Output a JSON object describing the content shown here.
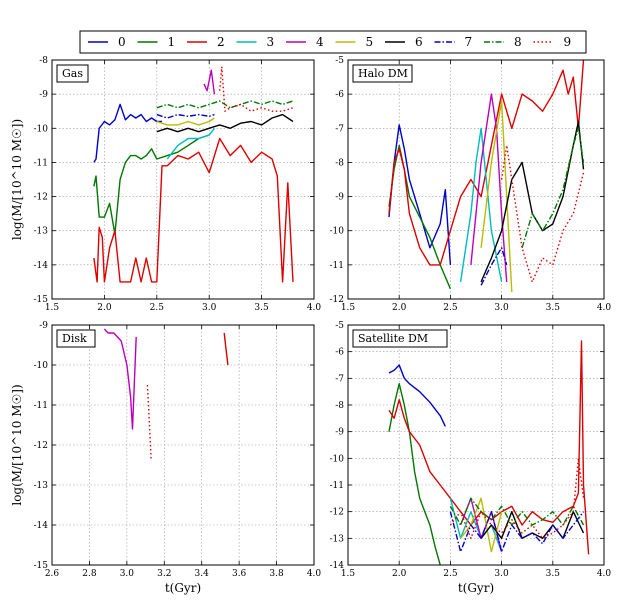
{
  "legend": {
    "entries": [
      {
        "label": "0",
        "color": "#0000cc",
        "dash": "solid"
      },
      {
        "label": "1",
        "color": "#007700",
        "dash": "solid"
      },
      {
        "label": "2",
        "color": "#dd0000",
        "dash": "solid"
      },
      {
        "label": "3",
        "color": "#00bbbb",
        "dash": "solid"
      },
      {
        "label": "4",
        "color": "#bb00bb",
        "dash": "solid"
      },
      {
        "label": "5",
        "color": "#bbbb00",
        "dash": "solid"
      },
      {
        "label": "6",
        "color": "#000000",
        "dash": "solid"
      },
      {
        "label": "7",
        "color": "#0000cc",
        "dash": "dashdot"
      },
      {
        "label": "8",
        "color": "#007700",
        "dash": "dashdot"
      },
      {
        "label": "9",
        "color": "#dd0000",
        "dash": "dotted"
      }
    ]
  },
  "chart_data": [
    {
      "type": "line",
      "title": "Gas",
      "xlabel": "",
      "ylabel": "log(M/[10^10 M☉])",
      "xlim": [
        1.5,
        4.0
      ],
      "ylim": [
        -15,
        -8
      ],
      "xticks": [
        "1.5",
        "2.0",
        "2.5",
        "3.0",
        "3.5",
        "4.0"
      ],
      "yticks": [
        "-15",
        "-14",
        "-13",
        "-12",
        "-11",
        "-10",
        "-9",
        "-8"
      ],
      "grid": true,
      "series": [
        {
          "name": "0",
          "x": [
            1.9,
            1.92,
            1.95,
            2.0,
            2.05,
            2.1,
            2.15,
            2.2,
            2.25,
            2.3,
            2.35,
            2.4,
            2.45,
            2.5,
            2.55
          ],
          "y": [
            -11.0,
            -10.9,
            -10.0,
            -9.8,
            -9.9,
            -9.75,
            -9.3,
            -9.75,
            -9.6,
            -9.7,
            -9.6,
            -9.8,
            -9.7,
            -9.8,
            -9.8
          ]
        },
        {
          "name": "1",
          "x": [
            1.9,
            1.92,
            1.95,
            2.0,
            2.05,
            2.1,
            2.15,
            2.2,
            2.25,
            2.3,
            2.35,
            2.4,
            2.45,
            2.5,
            2.6,
            2.7,
            2.8,
            2.9,
            3.0
          ],
          "y": [
            -11.7,
            -11.4,
            -12.6,
            -12.6,
            -12.2,
            -13.1,
            -11.5,
            -11.0,
            -10.8,
            -10.8,
            -10.9,
            -10.8,
            -10.6,
            -10.9,
            -10.8,
            -10.7,
            -10.5,
            -10.3,
            -10.2
          ]
        },
        {
          "name": "2",
          "x": [
            1.9,
            1.93,
            1.95,
            1.98,
            2.0,
            2.05,
            2.1,
            2.15,
            2.2,
            2.25,
            2.3,
            2.35,
            2.4,
            2.45,
            2.5,
            2.55,
            2.6,
            2.7,
            2.8,
            2.9,
            3.0,
            3.1,
            3.2,
            3.3,
            3.4,
            3.5,
            3.6,
            3.65,
            3.7,
            3.75,
            3.8
          ],
          "y": [
            -13.8,
            -14.5,
            -12.9,
            -13.2,
            -14.5,
            -13.5,
            -13.0,
            -14.5,
            -14.5,
            -14.5,
            -13.8,
            -14.5,
            -13.8,
            -14.5,
            -14.5,
            -11.1,
            -11.1,
            -10.8,
            -10.9,
            -10.7,
            -11.3,
            -10.3,
            -10.8,
            -10.5,
            -11.0,
            -10.7,
            -10.9,
            -11.4,
            -14.5,
            -11.6,
            -14.5
          ]
        },
        {
          "name": "3",
          "x": [
            2.6,
            2.7,
            2.8,
            2.9,
            3.0,
            3.05
          ],
          "y": [
            -10.9,
            -10.5,
            -10.3,
            -10.3,
            -10.2,
            -10.0
          ]
        },
        {
          "name": "4",
          "x": [
            2.95,
            2.98,
            3.0,
            3.02,
            3.05
          ],
          "y": [
            -8.7,
            -8.9,
            -8.6,
            -8.3,
            -9.0
          ]
        },
        {
          "name": "5",
          "x": [
            2.5,
            2.6,
            2.7,
            2.8,
            2.9,
            3.0,
            3.05
          ],
          "y": [
            -9.8,
            -9.9,
            -9.9,
            -9.8,
            -9.9,
            -9.8,
            -9.7
          ]
        },
        {
          "name": "6",
          "x": [
            2.5,
            2.6,
            2.7,
            2.8,
            2.9,
            3.0,
            3.1,
            3.2,
            3.3,
            3.4,
            3.5,
            3.6,
            3.7,
            3.8
          ],
          "y": [
            -10.1,
            -10.0,
            -10.1,
            -10.0,
            -10.1,
            -10.0,
            -9.9,
            -10.0,
            -9.85,
            -9.8,
            -9.9,
            -9.7,
            -9.6,
            -9.8
          ]
        },
        {
          "name": "7",
          "x": [
            2.5,
            2.6,
            2.7,
            2.8,
            2.9,
            3.0,
            3.05
          ],
          "y": [
            -9.6,
            -9.7,
            -9.6,
            -9.65,
            -9.6,
            -9.65,
            -9.6
          ]
        },
        {
          "name": "8",
          "x": [
            2.5,
            2.6,
            2.7,
            2.8,
            2.9,
            3.0,
            3.1,
            3.2,
            3.3,
            3.4,
            3.5,
            3.6,
            3.7,
            3.8
          ],
          "y": [
            -9.4,
            -9.3,
            -9.4,
            -9.3,
            -9.4,
            -9.3,
            -9.2,
            -9.4,
            -9.3,
            -9.2,
            -9.3,
            -9.2,
            -9.3,
            -9.2
          ]
        },
        {
          "name": "9",
          "x": [
            3.1,
            3.12,
            3.15,
            3.2,
            3.3,
            3.4,
            3.5,
            3.6,
            3.7,
            3.8
          ],
          "y": [
            -8.9,
            -8.2,
            -9.5,
            -9.4,
            -9.3,
            -9.5,
            -9.4,
            -9.5,
            -9.5,
            -9.4
          ]
        }
      ]
    },
    {
      "type": "line",
      "title": "Halo DM",
      "xlabel": "",
      "ylabel": "",
      "xlim": [
        1.5,
        4.0
      ],
      "ylim": [
        -12,
        -5
      ],
      "xticks": [
        "1.5",
        "2.0",
        "2.5",
        "3.0",
        "3.5",
        "4.0"
      ],
      "yticks": [
        "-12",
        "-11",
        "-10",
        "-9",
        "-8",
        "-7",
        "-6",
        "-5"
      ],
      "grid": true,
      "series": [
        {
          "name": "0",
          "x": [
            1.9,
            1.95,
            2.0,
            2.05,
            2.1,
            2.2,
            2.3,
            2.4,
            2.45,
            2.5
          ],
          "y": [
            -9.6,
            -8.0,
            -6.9,
            -7.6,
            -8.5,
            -9.5,
            -10.5,
            -9.8,
            -8.8,
            -11.0
          ]
        },
        {
          "name": "1",
          "x": [
            1.9,
            1.95,
            2.0,
            2.05,
            2.1,
            2.2,
            2.3,
            2.4,
            2.5
          ],
          "y": [
            -9.3,
            -8.2,
            -7.5,
            -8.2,
            -9.0,
            -9.6,
            -10.2,
            -11.0,
            -11.7
          ]
        },
        {
          "name": "2",
          "x": [
            1.9,
            1.95,
            2.0,
            2.05,
            2.1,
            2.2,
            2.3,
            2.4,
            2.5,
            2.6,
            2.7,
            2.8,
            2.9,
            3.0,
            3.1,
            3.2,
            3.3,
            3.4,
            3.5,
            3.6,
            3.65,
            3.7,
            3.75,
            3.8
          ],
          "y": [
            -9.5,
            -8.0,
            -7.6,
            -8.2,
            -9.5,
            -10.5,
            -11.0,
            -11.0,
            -10.0,
            -9.0,
            -8.5,
            -9.0,
            -7.5,
            -6.0,
            -7.0,
            -6.0,
            -6.2,
            -6.5,
            -6.0,
            -5.3,
            -6.0,
            -5.5,
            -7.0,
            -5.0
          ]
        },
        {
          "name": "3",
          "x": [
            2.6,
            2.7,
            2.75,
            2.8,
            2.9,
            3.0
          ],
          "y": [
            -11.5,
            -9.5,
            -8.0,
            -7.0,
            -10.0,
            -11.5
          ]
        },
        {
          "name": "4",
          "x": [
            2.7,
            2.8,
            2.9,
            2.95,
            3.0,
            3.05
          ],
          "y": [
            -11.0,
            -8.0,
            -6.0,
            -7.0,
            -9.5,
            -11.5
          ]
        },
        {
          "name": "5",
          "x": [
            2.8,
            2.9,
            3.0,
            3.05,
            3.1
          ],
          "y": [
            -10.5,
            -8.0,
            -6.2,
            -9.0,
            -11.8
          ]
        },
        {
          "name": "6",
          "x": [
            2.8,
            2.9,
            3.0,
            3.1,
            3.2,
            3.3,
            3.4,
            3.5,
            3.6,
            3.7,
            3.75,
            3.8
          ],
          "y": [
            -11.5,
            -10.8,
            -10.0,
            -8.5,
            -8.0,
            -9.5,
            -10.0,
            -9.8,
            -9.0,
            -7.5,
            -6.8,
            -8.2
          ]
        },
        {
          "name": "7",
          "x": [
            2.8,
            2.9,
            3.0,
            3.05
          ],
          "y": [
            -11.6,
            -11.0,
            -10.5,
            -11.0
          ]
        },
        {
          "name": "8",
          "x": [
            3.2,
            3.3,
            3.4,
            3.5,
            3.6,
            3.7,
            3.75,
            3.8
          ],
          "y": [
            -10.5,
            -9.5,
            -10.0,
            -9.5,
            -8.8,
            -7.5,
            -7.0,
            -8.0
          ]
        },
        {
          "name": "9",
          "x": [
            3.0,
            3.05,
            3.1,
            3.2,
            3.3,
            3.4,
            3.5,
            3.6,
            3.7,
            3.8
          ],
          "y": [
            -8.5,
            -7.5,
            -8.5,
            -10.5,
            -11.5,
            -10.8,
            -11.0,
            -10.0,
            -9.5,
            -8.3
          ]
        }
      ]
    },
    {
      "type": "line",
      "title": "Disk",
      "xlabel": "t(Gyr)",
      "ylabel": "log(M/[10^10 M☉])",
      "xlim": [
        2.6,
        4.0
      ],
      "ylim": [
        -15,
        -9
      ],
      "xticks": [
        "2.6",
        "2.8",
        "3.0",
        "3.2",
        "3.4",
        "3.6",
        "3.8",
        "4.0"
      ],
      "yticks": [
        "-15",
        "-14",
        "-13",
        "-12",
        "-11",
        "-10",
        "-9"
      ],
      "grid": true,
      "series": [
        {
          "name": "4",
          "x": [
            2.88,
            2.9,
            2.93,
            2.95,
            2.97,
            3.0,
            3.02,
            3.03,
            3.05
          ],
          "y": [
            -9.1,
            -9.2,
            -9.2,
            -9.3,
            -9.4,
            -10.0,
            -10.8,
            -11.6,
            -9.3
          ]
        },
        {
          "name": "2",
          "x": [
            3.52,
            3.53,
            3.54
          ],
          "y": [
            -9.2,
            -9.6,
            -10.0
          ]
        },
        {
          "name": "9",
          "x": [
            3.11,
            3.12,
            3.13
          ],
          "y": [
            -10.5,
            -11.4,
            -12.4
          ]
        }
      ]
    },
    {
      "type": "line",
      "title": "Satellite DM",
      "xlabel": "t(Gyr)",
      "ylabel": "",
      "xlim": [
        1.5,
        4.0
      ],
      "ylim": [
        -14,
        -5
      ],
      "xticks": [
        "1.5",
        "2.0",
        "2.5",
        "3.0",
        "3.5",
        "4.0"
      ],
      "yticks": [
        "-14",
        "-13",
        "-12",
        "-11",
        "-10",
        "-9",
        "-8",
        "-7",
        "-6",
        "-5"
      ],
      "grid": true,
      "series": [
        {
          "name": "0",
          "x": [
            1.9,
            1.95,
            2.0,
            2.05,
            2.1,
            2.2,
            2.3,
            2.4,
            2.45
          ],
          "y": [
            -6.8,
            -6.7,
            -6.5,
            -7.0,
            -7.2,
            -7.5,
            -7.9,
            -8.4,
            -8.8
          ]
        },
        {
          "name": "1",
          "x": [
            1.9,
            1.95,
            2.0,
            2.05,
            2.1,
            2.15,
            2.2,
            2.25,
            2.3,
            2.35,
            2.4
          ],
          "y": [
            -9.0,
            -8.0,
            -7.2,
            -8.0,
            -9.0,
            -10.5,
            -11.5,
            -12.0,
            -12.5,
            -13.3,
            -14.0
          ]
        },
        {
          "name": "2",
          "x": [
            1.9,
            1.95,
            2.0,
            2.05,
            2.1,
            2.2,
            2.3,
            2.4,
            2.5,
            2.6,
            2.7,
            2.8,
            2.9,
            3.0,
            3.1,
            3.2,
            3.3,
            3.4,
            3.5,
            3.6,
            3.7,
            3.75,
            3.78,
            3.8,
            3.85
          ],
          "y": [
            -8.2,
            -8.5,
            -7.8,
            -8.5,
            -9.0,
            -9.5,
            -10.5,
            -11.0,
            -11.5,
            -12.0,
            -12.5,
            -12.0,
            -12.3,
            -12.0,
            -11.8,
            -12.5,
            -12.0,
            -12.3,
            -12.4,
            -12.0,
            -11.8,
            -11.3,
            -5.6,
            -11.0,
            -13.6
          ]
        },
        {
          "name": "3",
          "x": [
            2.5,
            2.6,
            2.7,
            2.8,
            2.9,
            3.0
          ],
          "y": [
            -11.5,
            -13.0,
            -12.0,
            -13.0,
            -12.5,
            -13.5
          ]
        },
        {
          "name": "4",
          "x": [
            2.6,
            2.7,
            2.8,
            2.9,
            3.0
          ],
          "y": [
            -12.5,
            -11.5,
            -13.0,
            -12.0,
            -13.5
          ]
        },
        {
          "name": "5",
          "x": [
            2.6,
            2.7,
            2.8,
            2.9,
            3.0
          ],
          "y": [
            -13.0,
            -12.5,
            -11.5,
            -13.5,
            -12.0
          ]
        },
        {
          "name": "6",
          "x": [
            2.8,
            2.9,
            3.0,
            3.1,
            3.2,
            3.3,
            3.4,
            3.5,
            3.6,
            3.7,
            3.8
          ],
          "y": [
            -13.0,
            -12.5,
            -13.0,
            -12.0,
            -13.0,
            -12.8,
            -13.0,
            -12.5,
            -13.0,
            -12.0,
            -12.8
          ]
        },
        {
          "name": "7",
          "x": [
            2.5,
            2.6,
            2.7,
            2.8,
            2.9,
            3.0,
            3.1,
            3.2,
            3.3,
            3.4,
            3.5,
            3.6,
            3.7,
            3.8
          ],
          "y": [
            -12.0,
            -13.5,
            -12.5,
            -13.0,
            -12.0,
            -13.5,
            -12.5,
            -13.0,
            -12.8,
            -13.2,
            -12.5,
            -13.0,
            -12.5,
            -12.0
          ]
        },
        {
          "name": "8",
          "x": [
            2.5,
            2.6,
            2.7,
            2.8,
            2.9,
            3.0,
            3.1,
            3.2,
            3.3,
            3.4,
            3.5,
            3.6,
            3.7,
            3.8
          ],
          "y": [
            -11.8,
            -12.5,
            -11.5,
            -12.0,
            -12.3,
            -11.8,
            -12.5,
            -12.0,
            -12.5,
            -12.3,
            -12.0,
            -12.5,
            -11.8,
            -12.5
          ]
        },
        {
          "name": "9",
          "x": [
            2.5,
            2.6,
            2.7,
            2.8,
            2.9,
            3.0,
            3.1,
            3.2,
            3.3,
            3.4,
            3.5,
            3.6,
            3.7,
            3.75,
            3.8
          ],
          "y": [
            -12.5,
            -12.0,
            -13.0,
            -12.0,
            -12.5,
            -12.8,
            -12.3,
            -12.8,
            -12.5,
            -13.0,
            -12.8,
            -12.5,
            -12.0,
            -10.0,
            -11.5
          ]
        }
      ]
    }
  ]
}
